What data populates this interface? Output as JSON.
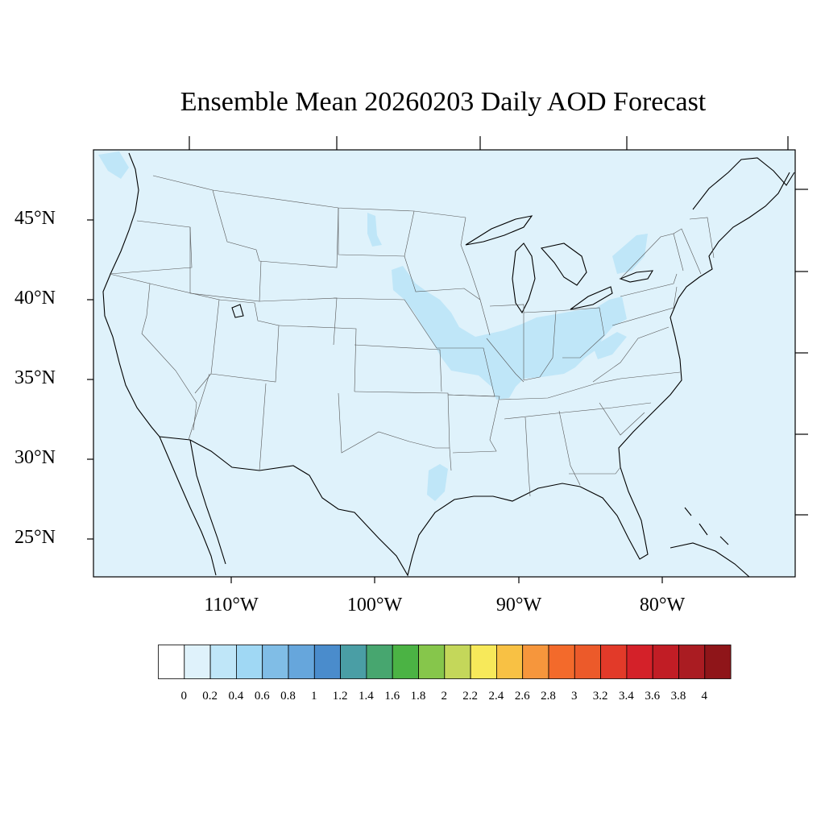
{
  "title": "Ensemble Mean 20260203 Daily AOD Forecast",
  "lat_labels": [
    "45°N",
    "40°N",
    "35°N",
    "30°N",
    "25°N"
  ],
  "lon_labels": [
    "110°W",
    "100°W",
    "90°W",
    "80°W"
  ],
  "colorbar": {
    "labels": [
      "0",
      "0.2",
      "0.4",
      "0.6",
      "0.8",
      "1",
      "1.2",
      "1.4",
      "1.6",
      "1.8",
      "2",
      "2.2",
      "2.4",
      "2.6",
      "2.8",
      "3",
      "3.2",
      "3.4",
      "3.6",
      "3.8",
      "4"
    ],
    "colors": [
      "#ffffff",
      "#dff2fb",
      "#bfe6f8",
      "#a0d8f4",
      "#80bde6",
      "#66a6dc",
      "#4a8ccc",
      "#4a9ea5",
      "#47a66f",
      "#4bb344",
      "#86c64b",
      "#c4d75a",
      "#f7e95a",
      "#f8c144",
      "#f6963c",
      "#f36a2b",
      "#ec5a2a",
      "#e23a29",
      "#d42129",
      "#c11d25",
      "#aa1c22",
      "#8f1519"
    ]
  },
  "map_colors": {
    "background": "#dff2fb",
    "aod_plume": "#bfe6f8"
  }
}
